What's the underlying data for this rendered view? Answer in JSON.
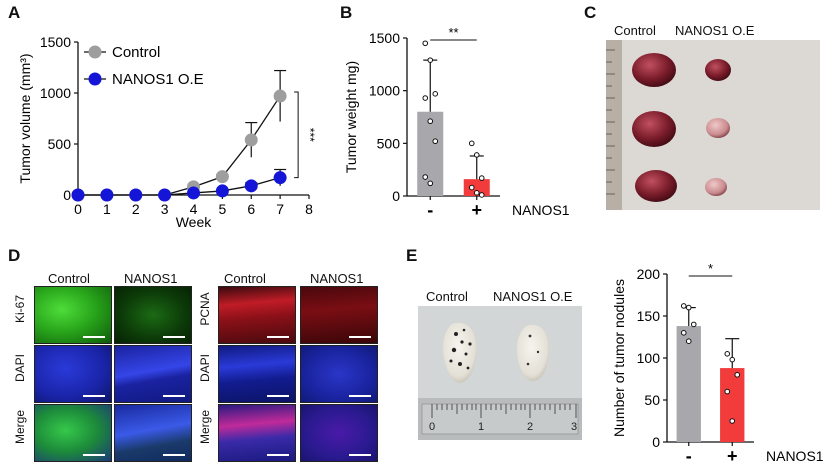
{
  "panels": {
    "a": {
      "letter": "A"
    },
    "b": {
      "letter": "B"
    },
    "c": {
      "letter": "C",
      "col1": "Control",
      "col2": "NANOS1 O.E"
    },
    "d": {
      "letter": "D",
      "ki67_cols": [
        "Control",
        "NANOS1"
      ],
      "pcna_cols": [
        "Control",
        "NANOS1"
      ],
      "ki67_rows": [
        "Ki-67",
        "DAPI",
        "Merge"
      ],
      "pcna_rows": [
        "PCNA",
        "DAPI",
        "Merge"
      ]
    },
    "e": {
      "letter": "E",
      "photo_col1": "Control",
      "photo_col2": "NANOS1 O.E",
      "ruler_nums": [
        "0",
        "1",
        "2",
        "3"
      ]
    }
  },
  "colors": {
    "control": "#9e9e9e",
    "nanos1": "#1515d8",
    "bar_control": "#a8a8ac",
    "bar_nanos1": "#f23c3c"
  },
  "chart_data": [
    {
      "id": "A",
      "type": "line",
      "xlabel": "Week",
      "ylabel": "Tumor volume (mm³)",
      "xlim": [
        0,
        8
      ],
      "ylim": [
        0,
        1500
      ],
      "xticks": [
        "0",
        "1",
        "2",
        "3",
        "4",
        "5",
        "6",
        "7",
        "8"
      ],
      "yticks": [
        "0",
        "500",
        "1000",
        "1500"
      ],
      "legend": "top-left",
      "significance": "***",
      "series": [
        {
          "name": "Control",
          "color": "#9e9e9e",
          "x": [
            0,
            1,
            2,
            3,
            4,
            5,
            6,
            7
          ],
          "y": [
            0,
            0,
            0,
            0,
            80,
            180,
            540,
            970
          ],
          "err": [
            0,
            0,
            0,
            0,
            10,
            20,
            170,
            250
          ]
        },
        {
          "name": "NANOS1 O.E",
          "color": "#1515d8",
          "x": [
            0,
            1,
            2,
            3,
            4,
            5,
            6,
            7
          ],
          "y": [
            0,
            0,
            0,
            0,
            20,
            40,
            90,
            170
          ],
          "err": [
            0,
            0,
            0,
            0,
            5,
            10,
            30,
            80
          ]
        }
      ]
    },
    {
      "id": "B",
      "type": "bar",
      "ylabel": "Tumor weight mg)",
      "ylim": [
        0,
        1500
      ],
      "yticks": [
        "0",
        "500",
        "1000",
        "1500"
      ],
      "categories": [
        "-",
        "+"
      ],
      "group_label": "NANOS1",
      "significance": "**",
      "values": [
        800,
        160
      ],
      "err": [
        490,
        220
      ],
      "points": [
        [
          1450,
          1290,
          970,
          930,
          710,
          520,
          180,
          120
        ],
        [
          500,
          390,
          170,
          80,
          30,
          10
        ]
      ]
    },
    {
      "id": "E",
      "type": "bar",
      "ylabel": "Number of tumor nodules",
      "ylim": [
        0,
        200
      ],
      "yticks": [
        "0",
        "50",
        "100",
        "150",
        "200"
      ],
      "categories": [
        "-",
        "+"
      ],
      "group_label": "NANOS1",
      "significance": "*",
      "values": [
        138,
        88
      ],
      "err": [
        22,
        35
      ],
      "points": [
        [
          162,
          160,
          140,
          130,
          120
        ],
        [
          105,
          98,
          80,
          60,
          25
        ]
      ]
    }
  ]
}
